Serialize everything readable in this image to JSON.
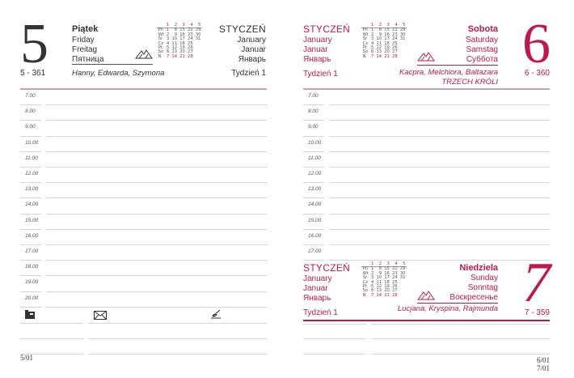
{
  "mini_calendar": {
    "weeks": [
      "1",
      "2",
      "3",
      "4",
      "5"
    ],
    "rows": [
      {
        "day": "Pn",
        "dates": [
          "1",
          "8",
          "15",
          "22",
          "29"
        ]
      },
      {
        "day": "Wt",
        "dates": [
          "2",
          "9",
          "16",
          "23",
          "30"
        ]
      },
      {
        "day": "Śr",
        "dates": [
          "3",
          "10",
          "17",
          "24",
          "31"
        ]
      },
      {
        "day": "Cz",
        "dates": [
          "4",
          "11",
          "18",
          "25",
          ""
        ]
      },
      {
        "day": "Pt",
        "dates": [
          "5",
          "12",
          "19",
          "26",
          ""
        ]
      },
      {
        "day": "So",
        "dates": [
          "6",
          "13",
          "20",
          "27",
          ""
        ]
      },
      {
        "day": "N",
        "dates": [
          "7",
          "14",
          "21",
          "28",
          ""
        ]
      }
    ]
  },
  "accent_color": "#c0184a",
  "left_page": {
    "day_number": "5",
    "day_pl": "Piątek",
    "day_en": "Friday",
    "day_de": "Freitag",
    "day_ru": "Пятница",
    "month_pl": "Styczeń",
    "month_en": "January",
    "month_de": "Januar",
    "month_ru": "Январь",
    "day_of_year": "5 - 361",
    "name_days": "Hanny, Edwarda, Szymona",
    "week": "Tydzień 1",
    "hours": [
      "7.00",
      "8.00",
      "9.00",
      "10.00",
      "11.00",
      "12.00",
      "13.00",
      "14.00",
      "15.00",
      "16.00",
      "17.00",
      "18.00",
      "19.00",
      "20.00"
    ],
    "icons": [
      "phone-icon",
      "envelope-icon",
      "pen-icon"
    ],
    "footer": "5/01"
  },
  "right_page": {
    "saturday": {
      "day_number": "6",
      "day_pl": "Sobota",
      "day_en": "Saturday",
      "day_de": "Samstag",
      "day_ru": "Суббота",
      "month_pl": "Styczeń",
      "month_en": "January",
      "month_de": "Januar",
      "month_ru": "Январь",
      "day_of_year": "6 - 360",
      "name_days": "Kacpra, Melchiora, Baltazara",
      "holiday": "TRZECH KRÓLI",
      "week": "Tydzień 1",
      "hours": [
        "7.00",
        "8.00",
        "9.00",
        "10.00",
        "11.00",
        "12.00",
        "13.00",
        "14.00",
        "15.00",
        "16.00",
        "17.00"
      ]
    },
    "sunday": {
      "day_number": "7",
      "day_pl": "Niedziela",
      "day_en": "Sunday",
      "day_de": "Sonntag",
      "day_ru": "Воскресенье",
      "month_pl": "Styczeń",
      "month_en": "January",
      "month_de": "Januar",
      "month_ru": "Январь",
      "day_of_year": "7 - 359",
      "name_days": "Lucjana, Kryspina, Rajmunda",
      "week": "Tydzień 1"
    },
    "footer_1": "6/01",
    "footer_2": "7/01"
  }
}
